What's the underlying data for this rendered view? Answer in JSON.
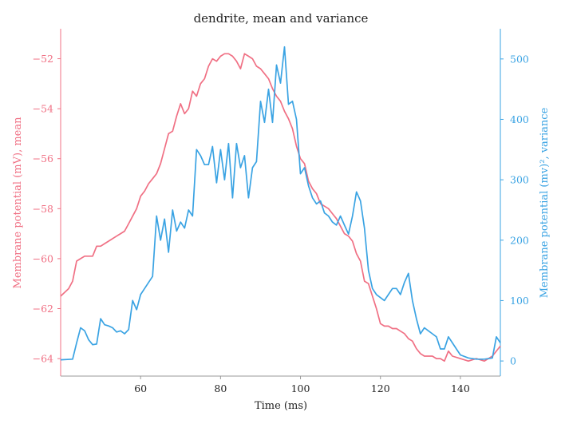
{
  "chart_data": {
    "type": "line",
    "title": "dendrite, mean and variance",
    "xlabel": "Time (ms)",
    "ylabel_left": "Membrane potential (mV), mean",
    "ylabel_right": "Membrane potential (mv)², variance",
    "xlim": [
      40,
      150
    ],
    "ylim_left": [
      -64.7,
      -50.8
    ],
    "ylim_right": [
      -25,
      550
    ],
    "x_ticks": [
      60,
      80,
      100,
      120,
      140
    ],
    "y_ticks_left": [
      -64,
      -62,
      -60,
      -58,
      -56,
      -54,
      -52
    ],
    "y_ticks_right": [
      0,
      100,
      200,
      300,
      400,
      500
    ],
    "grid": false,
    "colors": {
      "mean": "#f07084",
      "variance": "#3aa3e3",
      "axis": "#999999",
      "text": "#222222"
    },
    "series": [
      {
        "axis": "left",
        "color": "#f07084",
        "x": [
          40,
          42,
          43,
          44,
          45,
          46,
          48,
          49,
          50,
          51,
          52,
          54,
          55,
          56,
          57,
          58,
          59,
          60,
          61,
          62,
          63,
          64,
          65,
          66,
          67,
          68,
          69,
          70,
          71,
          72,
          73,
          74,
          75,
          76,
          77,
          78,
          79,
          80,
          81,
          82,
          83,
          84,
          85,
          86,
          87,
          88,
          89,
          90,
          91,
          92,
          93,
          94,
          95,
          96,
          97,
          98,
          99,
          100,
          101,
          102,
          103,
          104,
          105,
          106,
          107,
          108,
          109,
          110,
          111,
          112,
          113,
          114,
          115,
          116,
          117,
          118,
          119,
          120,
          121,
          122,
          123,
          124,
          125,
          126,
          127,
          128,
          129,
          130,
          131,
          132,
          133,
          134,
          135,
          136,
          137,
          138,
          140,
          142,
          144,
          146,
          148,
          150
        ],
        "y": [
          -61.5,
          -61.2,
          -60.9,
          -60.1,
          -60.0,
          -59.9,
          -59.9,
          -59.5,
          -59.5,
          -59.4,
          -59.3,
          -59.1,
          -59.0,
          -58.9,
          -58.6,
          -58.3,
          -58.0,
          -57.5,
          -57.3,
          -57.0,
          -56.8,
          -56.6,
          -56.2,
          -55.6,
          -55.0,
          -54.9,
          -54.3,
          -53.8,
          -54.2,
          -54.0,
          -53.3,
          -53.5,
          -53.0,
          -52.8,
          -52.3,
          -52.0,
          -52.1,
          -51.9,
          -51.8,
          -51.8,
          -51.9,
          -52.1,
          -52.4,
          -51.8,
          -51.9,
          -52.0,
          -52.3,
          -52.4,
          -52.6,
          -52.8,
          -53.2,
          -53.5,
          -53.7,
          -54.1,
          -54.4,
          -54.8,
          -55.5,
          -56.0,
          -56.2,
          -56.9,
          -57.2,
          -57.4,
          -57.8,
          -57.9,
          -58.0,
          -58.2,
          -58.4,
          -58.7,
          -59.0,
          -59.1,
          -59.3,
          -59.8,
          -60.1,
          -60.9,
          -61.0,
          -61.5,
          -62.0,
          -62.6,
          -62.7,
          -62.7,
          -62.8,
          -62.8,
          -62.9,
          -63.0,
          -63.2,
          -63.3,
          -63.6,
          -63.8,
          -63.9,
          -63.9,
          -63.9,
          -64.0,
          -64.0,
          -64.1,
          -63.7,
          -63.9,
          -64.0,
          -64.1,
          -64.0,
          -64.1,
          -63.9,
          -63.5
        ]
      },
      {
        "axis": "right",
        "color": "#3aa3e3",
        "x": [
          40,
          43,
          44,
          45,
          46,
          47,
          48,
          49,
          50,
          51,
          52,
          53,
          54,
          55,
          56,
          57,
          58,
          59,
          60,
          61,
          62,
          63,
          64,
          65,
          66,
          67,
          68,
          69,
          70,
          71,
          72,
          73,
          74,
          75,
          76,
          77,
          78,
          79,
          80,
          81,
          82,
          83,
          84,
          85,
          86,
          87,
          88,
          89,
          90,
          91,
          92,
          93,
          94,
          95,
          96,
          97,
          98,
          99,
          100,
          101,
          102,
          103,
          104,
          105,
          106,
          107,
          108,
          109,
          110,
          111,
          112,
          113,
          114,
          115,
          116,
          117,
          118,
          119,
          120,
          121,
          122,
          123,
          124,
          125,
          126,
          127,
          128,
          129,
          130,
          131,
          132,
          133,
          134,
          135,
          136,
          137,
          138,
          139,
          140,
          142,
          144,
          146,
          148,
          149,
          150
        ],
        "y": [
          2,
          3,
          30,
          55,
          50,
          35,
          27,
          28,
          70,
          60,
          58,
          55,
          48,
          50,
          45,
          52,
          100,
          85,
          110,
          120,
          130,
          140,
          240,
          200,
          235,
          180,
          250,
          215,
          230,
          220,
          250,
          240,
          350,
          340,
          325,
          325,
          355,
          295,
          350,
          300,
          360,
          270,
          360,
          320,
          340,
          270,
          320,
          330,
          430,
          395,
          450,
          395,
          490,
          460,
          520,
          425,
          430,
          400,
          310,
          320,
          290,
          270,
          260,
          265,
          245,
          240,
          230,
          225,
          240,
          225,
          210,
          240,
          280,
          265,
          220,
          150,
          120,
          110,
          105,
          100,
          110,
          120,
          120,
          110,
          130,
          145,
          100,
          70,
          45,
          55,
          50,
          45,
          40,
          20,
          20,
          40,
          30,
          20,
          10,
          5,
          3,
          3,
          5,
          40,
          30
        ]
      }
    ]
  }
}
